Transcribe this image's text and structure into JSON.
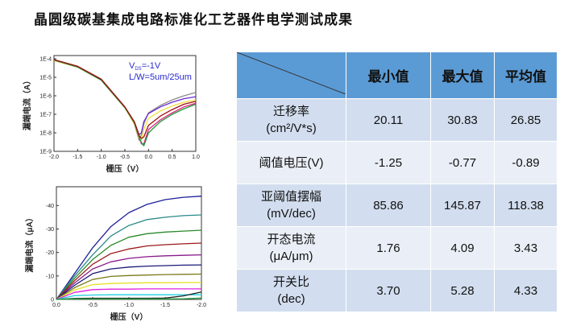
{
  "title": "晶圆级碳基集成电路标准化工艺器件电学测试成果",
  "table": {
    "headers": [
      "最小值",
      "最大值",
      "平均值"
    ],
    "rows": [
      {
        "label1": "迁移率",
        "label2": "(cm²/V*s)",
        "min": "20.11",
        "max": "30.83",
        "avg": "26.85"
      },
      {
        "label1": "阈值电压(V)",
        "label2": "",
        "min": "-1.25",
        "max": "-0.77",
        "avg": "-0.89"
      },
      {
        "label1": "亚阈值摆幅",
        "label2": "(mV/dec)",
        "min": "85.86",
        "max": "145.87",
        "avg": "118.38"
      },
      {
        "label1": "开态电流",
        "label2": "(μA/μm)",
        "min": "1.76",
        "max": "4.09",
        "avg": "3.43"
      },
      {
        "label1": "开关比",
        "label2": "(dec)",
        "min": "3.70",
        "max": "5.28",
        "avg": "4.33"
      }
    ]
  },
  "chart_data": [
    {
      "type": "line",
      "xlabel": "栅压（V）",
      "ylabel": "漏端电流（A）",
      "yscale": "log",
      "xlim": [
        -2.0,
        1.0
      ],
      "ylim": [
        1e-09,
        0.0002
      ],
      "xticks": [
        "-2.0",
        "-1.5",
        "-1.0",
        "-0.5",
        "0.0",
        "0.5",
        "1.0"
      ],
      "yticks": [
        "1E-9",
        "1E-8",
        "1E-7",
        "1E-6",
        "1E-5",
        "1E-4"
      ],
      "annotation": {
        "line1_main": "V",
        "line1_sub": "DS",
        "line1_rest": "=-1V",
        "line2": "L/W=5um/25um"
      },
      "x": [
        -2.0,
        -1.5,
        -1.0,
        -0.5,
        -0.3,
        -0.2,
        -0.15,
        -0.1,
        0.0,
        0.25,
        0.5,
        0.75,
        1.0
      ],
      "series": [
        {
          "color": "#8c8c8c",
          "values": [
            9e-05,
            4e-05,
            8e-06,
            2.5e-07,
            3e-08,
            4e-09,
            8e-09,
            3e-08,
            1.2e-07,
            3e-07,
            6e-07,
            1e-06,
            1.5e-06
          ]
        },
        {
          "color": "#f0e040",
          "values": [
            8e-05,
            3.5e-05,
            7e-06,
            2.2e-07,
            3e-08,
            5e-09,
            4e-09,
            1.5e-08,
            6e-08,
            1.5e-07,
            2.8e-07,
            4.5e-07,
            6e-07
          ]
        },
        {
          "color": "#6a2bd6",
          "values": [
            9e-05,
            3.8e-05,
            7.5e-06,
            2.4e-07,
            4e-08,
            8e-09,
            1e-08,
            4e-08,
            1.1e-07,
            2.5e-07,
            4.5e-07,
            7e-07,
            9e-07
          ]
        },
        {
          "color": "#e0207a",
          "values": [
            8.5e-05,
            3.6e-05,
            7e-06,
            2.3e-07,
            3.5e-08,
            6e-09,
            2.5e-09,
            2.5e-09,
            1.5e-08,
            5e-08,
            1.2e-07,
            2.5e-07,
            4e-07
          ]
        },
        {
          "color": "#1a9a3a",
          "values": [
            8.5e-05,
            3.6e-05,
            7e-06,
            2.3e-07,
            3.5e-08,
            6e-09,
            3e-09,
            2e-09,
            1e-08,
            4e-08,
            1e-07,
            2e-07,
            3.5e-07
          ]
        },
        {
          "color": "#a01010",
          "values": [
            9e-05,
            3.9e-05,
            7.8e-06,
            2.5e-07,
            4e-08,
            7e-09,
            5e-09,
            6e-09,
            2.5e-08,
            8e-08,
            1.8e-07,
            3.5e-07,
            5e-07
          ]
        }
      ]
    },
    {
      "type": "line",
      "xlabel": "栅压（V）",
      "ylabel": "漏端电流（μA）",
      "xlim": [
        0.0,
        -2.0
      ],
      "ylim": [
        0,
        -48
      ],
      "xticks": [
        "0.0",
        "-0.5",
        "-1.0",
        "-1.5",
        "-2.0"
      ],
      "yticks": [
        "0",
        "-10",
        "-20",
        "-30",
        "-40"
      ],
      "x": [
        0,
        -0.25,
        -0.5,
        -0.75,
        -1.0,
        -1.25,
        -1.5,
        -1.75,
        -2.0
      ],
      "series": [
        {
          "color": "#1f1f9a",
          "values": [
            0,
            -11,
            -22,
            -31,
            -37,
            -40.5,
            -42.5,
            -43.5,
            -44
          ]
        },
        {
          "color": "#2a8a8a",
          "values": [
            0,
            -10,
            -19,
            -27,
            -31.5,
            -34,
            -35,
            -35.7,
            -36
          ]
        },
        {
          "color": "#2a8a2a",
          "values": [
            0,
            -9,
            -17,
            -23,
            -26.5,
            -28,
            -28.7,
            -29.1,
            -29.5
          ]
        },
        {
          "color": "#9a1a1a",
          "values": [
            0,
            -8,
            -15,
            -19.5,
            -21.5,
            -22.8,
            -23.3,
            -23.7,
            -24
          ]
        },
        {
          "color": "#8a1a8a",
          "values": [
            0,
            -7,
            -13,
            -16,
            -17.5,
            -18.2,
            -18.6,
            -18.8,
            -19
          ]
        },
        {
          "color": "#1a1a7a",
          "values": [
            0,
            -6,
            -11,
            -13,
            -13.8,
            -14.2,
            -14.4,
            -14.6,
            -14.7
          ]
        },
        {
          "color": "#7a7a1a",
          "values": [
            0,
            -5,
            -8.5,
            -9.8,
            -10.2,
            -10.4,
            -10.6,
            -10.7,
            -10.8
          ]
        },
        {
          "color": "#e8e020",
          "values": [
            0,
            -4,
            -6.3,
            -6.8,
            -7,
            -7.1,
            -7.1,
            -7.2,
            -7.2
          ]
        },
        {
          "color": "#e020e0",
          "values": [
            0,
            -3,
            -4.2,
            -4.4,
            -4.4,
            -4.5,
            -4.5,
            -4.5,
            -4.5
          ]
        },
        {
          "color": "#20d0e0",
          "values": [
            0,
            -1.6,
            -1.9,
            -2,
            -2,
            -2,
            -2,
            -2,
            -2
          ]
        },
        {
          "color": "#202020",
          "values": [
            0,
            -0.4,
            -0.5,
            -0.5,
            -0.5,
            -0.5,
            -0.6,
            -1.5,
            -3.2
          ]
        },
        {
          "color": "#20a040",
          "values": [
            0,
            -0.2,
            -0.2,
            -0.2,
            -0.2,
            -0.2,
            -0.2,
            -0.3,
            -0.6
          ]
        }
      ]
    }
  ]
}
